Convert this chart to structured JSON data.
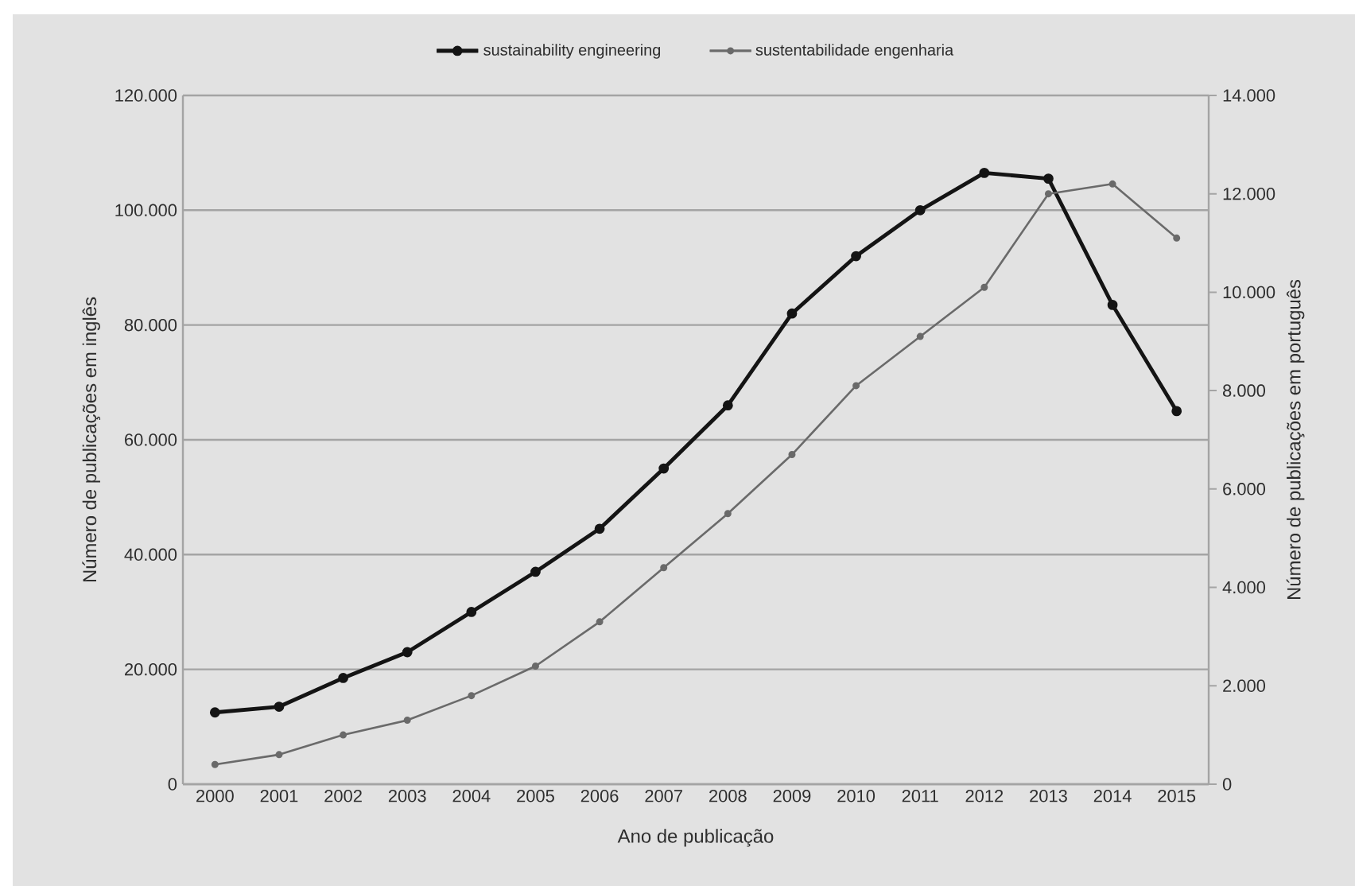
{
  "chart_data": {
    "type": "line",
    "xlabel": "Ano de publicação",
    "ylabel": "Número de publicações em inglês",
    "y2label": "Número de publicações em português",
    "categories": [
      "2000",
      "2001",
      "2002",
      "2003",
      "2004",
      "2005",
      "2006",
      "2007",
      "2008",
      "2009",
      "2010",
      "2011",
      "2012",
      "2013",
      "2014",
      "2015"
    ],
    "series": [
      {
        "name": "sustainability engineering",
        "color": "#141414",
        "values": [
          12500,
          13500,
          18500,
          23000,
          30000,
          37000,
          44500,
          55000,
          66000,
          82000,
          92000,
          100000,
          106500,
          105500,
          83500,
          65000
        ]
      },
      {
        "name": "sustentabilidade engenharia",
        "color": "#6a6a6a",
        "axis": "y2",
        "values": [
          400,
          600,
          1000,
          1300,
          1800,
          2400,
          3300,
          4400,
          5500,
          6700,
          8100,
          9100,
          10100,
          12000,
          12200,
          11100
        ]
      }
    ],
    "ylim": [
      0,
      120000
    ],
    "yticks": [
      {
        "value": 0,
        "label": "0"
      },
      {
        "value": 20000,
        "label": "20.000"
      },
      {
        "value": 40000,
        "label": "40.000"
      },
      {
        "value": 60000,
        "label": "60.000"
      },
      {
        "value": 80000,
        "label": "80.000"
      },
      {
        "value": 100000,
        "label": "100.000"
      },
      {
        "value": 120000,
        "label": "120.000"
      }
    ],
    "y2lim": [
      0,
      14000
    ],
    "y2ticks": [
      {
        "value": 0,
        "label": "0"
      },
      {
        "value": 2000,
        "label": "2.000"
      },
      {
        "value": 4000,
        "label": "4.000"
      },
      {
        "value": 6000,
        "label": "6.000"
      },
      {
        "value": 8000,
        "label": "8.000"
      },
      {
        "value": 10000,
        "label": "10.000"
      },
      {
        "value": 12000,
        "label": "12.000"
      },
      {
        "value": 14000,
        "label": "14.000"
      }
    ],
    "grid": "y",
    "legend": "top",
    "marker": "circle"
  }
}
